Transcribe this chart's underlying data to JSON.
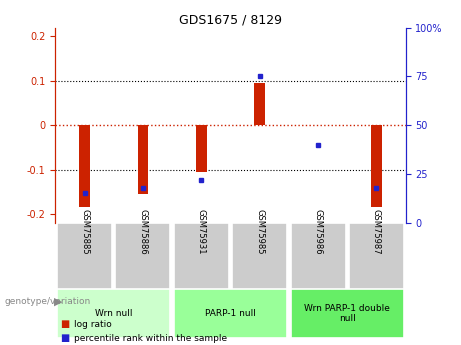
{
  "title": "GDS1675 / 8129",
  "samples": [
    "GSM75885",
    "GSM75886",
    "GSM75931",
    "GSM75985",
    "GSM75986",
    "GSM75987"
  ],
  "log_ratios": [
    -0.185,
    -0.155,
    -0.105,
    0.095,
    0.0,
    -0.185
  ],
  "percentile_ranks": [
    15,
    18,
    22,
    75,
    40,
    18
  ],
  "groups": [
    {
      "label": "Wrn null",
      "samples": [
        0,
        1
      ],
      "color": "#ccffcc"
    },
    {
      "label": "PARP-1 null",
      "samples": [
        2,
        3
      ],
      "color": "#99ff99"
    },
    {
      "label": "Wrn PARP-1 double\nnull",
      "samples": [
        4,
        5
      ],
      "color": "#66ee66"
    }
  ],
  "ylim": [
    -0.22,
    0.22
  ],
  "y_left_ticks": [
    -0.2,
    -0.1,
    0,
    0.1,
    0.2
  ],
  "y_right_ticks": [
    0,
    25,
    50,
    75,
    100
  ],
  "bar_color": "#cc2200",
  "dot_color": "#2222cc",
  "zero_line_color": "#cc2200",
  "grid_color": "#000000",
  "sample_box_color": "#cccccc",
  "genotype_label": "genotype/variation",
  "legend_items": [
    {
      "label": "log ratio",
      "color": "#cc2200"
    },
    {
      "label": "percentile rank within the sample",
      "color": "#2222cc"
    }
  ]
}
